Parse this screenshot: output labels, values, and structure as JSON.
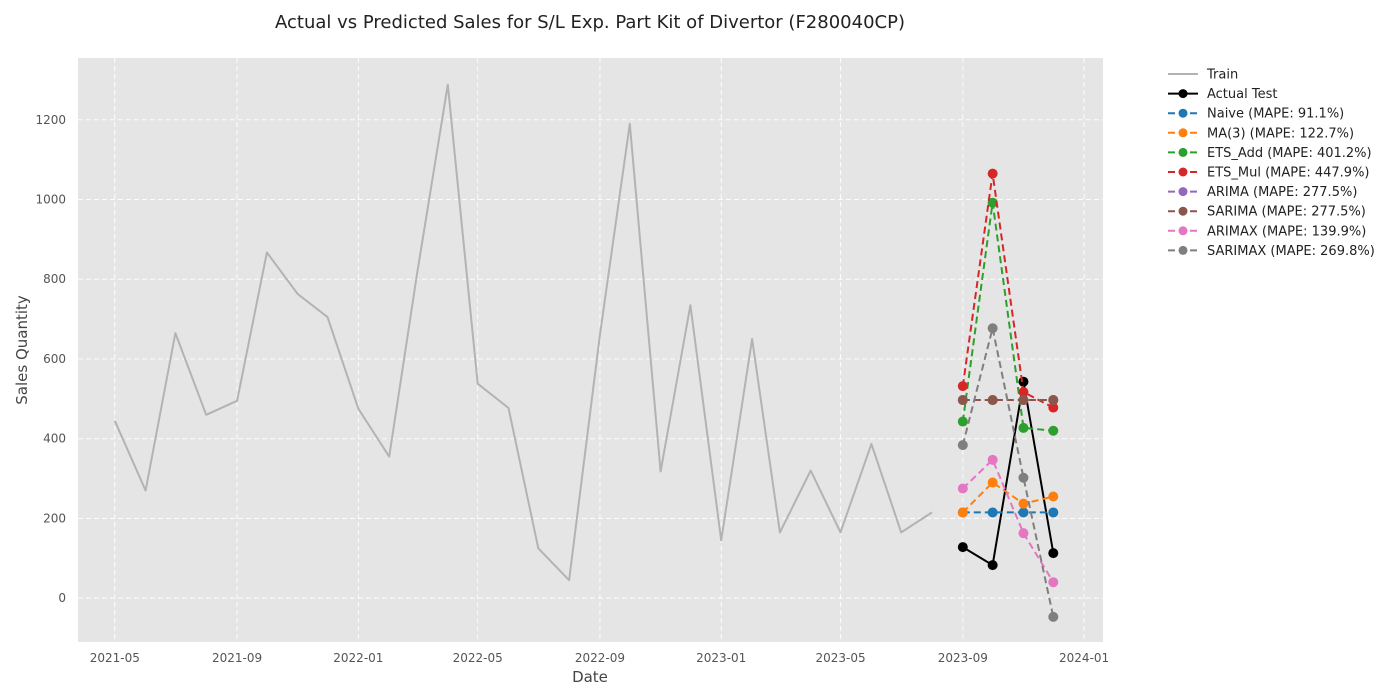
{
  "chart_data": {
    "type": "line",
    "title": "Actual vs Predicted Sales for S/L Exp. Part Kit of Divertor (F280040CP)",
    "xlabel": "Date",
    "ylabel": "Sales Quantity",
    "xlim": [
      "2021-03-25",
      "2024-01-20"
    ],
    "ylim": [
      -110,
      1355
    ],
    "x_ticks": [
      "2021-05-01",
      "2021-09-01",
      "2022-01-01",
      "2022-05-01",
      "2022-09-01",
      "2023-01-01",
      "2023-05-01",
      "2023-09-01",
      "2024-01-01"
    ],
    "x_tick_labels": [
      "2021-05",
      "2021-09",
      "2022-01",
      "2022-05",
      "2022-09",
      "2023-01",
      "2023-05",
      "2023-09",
      "2024-01"
    ],
    "y_ticks": [
      0,
      200,
      400,
      600,
      800,
      1000,
      1200
    ],
    "y_tick_labels": [
      "0",
      "200",
      "400",
      "600",
      "800",
      "1000",
      "1200"
    ],
    "grid": true,
    "legend_placement": "outside-right",
    "background_color": "#e5e5e5",
    "series": [
      {
        "name": "Train",
        "color": "#b3b3b3",
        "style": "solid",
        "marker": false,
        "x": [
          "2021-05-01",
          "2021-06-01",
          "2021-07-01",
          "2021-08-01",
          "2021-09-01",
          "2021-10-01",
          "2021-11-01",
          "2021-12-01",
          "2022-01-01",
          "2022-02-01",
          "2022-03-01",
          "2022-04-01",
          "2022-05-01",
          "2022-06-01",
          "2022-07-01",
          "2022-08-01",
          "2022-09-01",
          "2022-10-01",
          "2022-11-01",
          "2022-12-01",
          "2023-01-01",
          "2023-02-01",
          "2023-03-01",
          "2023-04-01",
          "2023-05-01",
          "2023-06-01",
          "2023-07-01",
          "2023-08-01"
        ],
        "values": [
          445,
          270,
          665,
          460,
          495,
          867,
          763,
          705,
          475,
          355,
          813,
          1288,
          538,
          477,
          125,
          45,
          660,
          1190,
          318,
          735,
          145,
          650,
          165,
          320,
          165,
          387,
          165,
          215
        ]
      },
      {
        "name": "Actual Test",
        "color": "#000000",
        "style": "solid",
        "marker": true,
        "x": [
          "2023-09-01",
          "2023-10-01",
          "2023-11-01",
          "2023-12-01"
        ],
        "values": [
          128,
          83,
          543,
          113
        ]
      },
      {
        "name": "Naive (MAPE: 91.1%)",
        "color": "#1f77b4",
        "style": "dashed",
        "marker": true,
        "x": [
          "2023-09-01",
          "2023-10-01",
          "2023-11-01",
          "2023-12-01"
        ],
        "values": [
          215,
          215,
          215,
          215
        ]
      },
      {
        "name": "MA(3) (MAPE: 122.7%)",
        "color": "#ff7f0e",
        "style": "dashed",
        "marker": true,
        "x": [
          "2023-09-01",
          "2023-10-01",
          "2023-11-01",
          "2023-12-01"
        ],
        "values": [
          215,
          290,
          237,
          255
        ]
      },
      {
        "name": "ETS_Add (MAPE: 401.2%)",
        "color": "#2ca02c",
        "style": "dashed",
        "marker": true,
        "x": [
          "2023-09-01",
          "2023-10-01",
          "2023-11-01",
          "2023-12-01"
        ],
        "values": [
          443,
          992,
          427,
          420
        ]
      },
      {
        "name": "ETS_Mul (MAPE: 447.9%)",
        "color": "#d62728",
        "style": "dashed",
        "marker": true,
        "x": [
          "2023-09-01",
          "2023-10-01",
          "2023-11-01",
          "2023-12-01"
        ],
        "values": [
          532,
          1065,
          517,
          478
        ]
      },
      {
        "name": "ARIMA (MAPE: 277.5%)",
        "color": "#9467bd",
        "style": "dashed",
        "marker": true,
        "x": [
          "2023-09-01",
          "2023-10-01",
          "2023-11-01",
          "2023-12-01"
        ],
        "values": [
          497,
          497,
          497,
          497
        ]
      },
      {
        "name": "SARIMA (MAPE: 277.5%)",
        "color": "#8c564b",
        "style": "dashed",
        "marker": true,
        "x": [
          "2023-09-01",
          "2023-10-01",
          "2023-11-01",
          "2023-12-01"
        ],
        "values": [
          497,
          497,
          497,
          497
        ]
      },
      {
        "name": "ARIMAX (MAPE: 139.9%)",
        "color": "#e377c2",
        "style": "dashed",
        "marker": true,
        "x": [
          "2023-09-01",
          "2023-10-01",
          "2023-11-01",
          "2023-12-01"
        ],
        "values": [
          275,
          347,
          163,
          40
        ]
      },
      {
        "name": "SARIMAX (MAPE: 269.8%)",
        "color": "#7f7f7f",
        "style": "dashed",
        "marker": true,
        "x": [
          "2023-09-01",
          "2023-10-01",
          "2023-11-01",
          "2023-12-01"
        ],
        "values": [
          384,
          677,
          302,
          -47
        ]
      }
    ]
  }
}
